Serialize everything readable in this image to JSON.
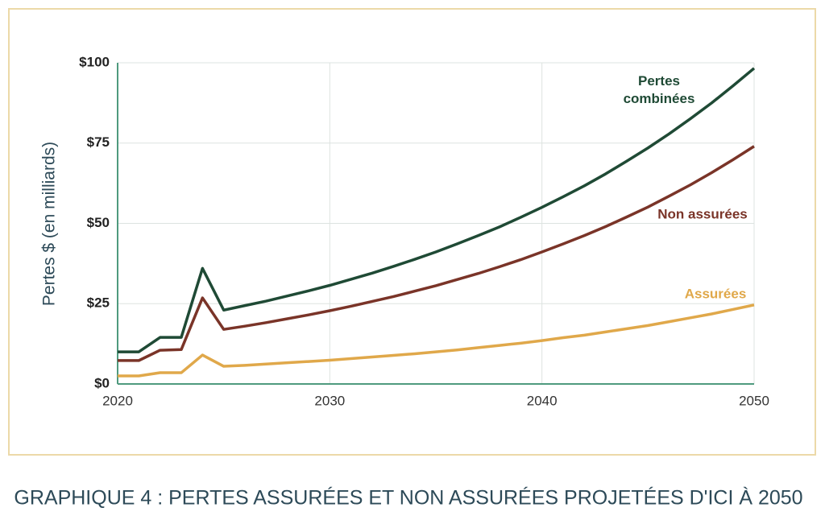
{
  "chart_data": {
    "type": "line",
    "title": "GRAPHIQUE 4 : PERTES ASSURÉES ET NON ASSURÉES PROJETÉES D'ICI À 2050",
    "y_label": "Pertes $ (en milliards)",
    "x": [
      2020,
      2021,
      2022,
      2023,
      2024,
      2025,
      2026,
      2027,
      2028,
      2029,
      2030,
      2031,
      2032,
      2033,
      2034,
      2035,
      2036,
      2037,
      2038,
      2039,
      2040,
      2041,
      2042,
      2043,
      2044,
      2045,
      2046,
      2047,
      2048,
      2049,
      2050
    ],
    "series": [
      {
        "name": "Pertes combinées",
        "color": "#1f4a35",
        "values": [
          10,
          10,
          14.5,
          14.5,
          36,
          23,
          24.4,
          25.8,
          27.4,
          29.0,
          30.7,
          32.6,
          34.5,
          36.6,
          38.8,
          41.1,
          43.6,
          46.2,
          48.9,
          51.9,
          55.0,
          58.3,
          61.7,
          65.4,
          69.4,
          73.5,
          77.9,
          82.6,
          87.5,
          92.8,
          98.3
        ]
      },
      {
        "name": "Non assurées",
        "color": "#7a3428",
        "values": [
          7.3,
          7.3,
          10.5,
          10.7,
          26.8,
          17,
          18.0,
          19.1,
          20.3,
          21.5,
          22.8,
          24.2,
          25.7,
          27.2,
          28.9,
          30.6,
          32.5,
          34.4,
          36.5,
          38.7,
          41.1,
          43.6,
          46.2,
          49.0,
          52.0,
          55.1,
          58.5,
          62.0,
          65.8,
          69.8,
          74.0
        ]
      },
      {
        "name": "Assurées",
        "color": "#e0a84a",
        "values": [
          2.5,
          2.5,
          3.5,
          3.5,
          9,
          5.5,
          5.8,
          6.2,
          6.6,
          7.0,
          7.4,
          7.9,
          8.4,
          8.9,
          9.4,
          10.0,
          10.6,
          11.3,
          12.0,
          12.7,
          13.5,
          14.4,
          15.2,
          16.2,
          17.2,
          18.2,
          19.4,
          20.6,
          21.8,
          23.2,
          24.6
        ]
      }
    ],
    "xlim": [
      2020,
      2050
    ],
    "xticks": [
      2020,
      2030,
      2040,
      2050
    ],
    "ylim": [
      0,
      100
    ],
    "yticks": [
      {
        "value": 0,
        "label": "$0"
      },
      {
        "value": 25,
        "label": "$25"
      },
      {
        "value": 50,
        "label": "$50"
      },
      {
        "value": 75,
        "label": "$75"
      },
      {
        "value": 100,
        "label": "$100"
      }
    ],
    "grid": true
  }
}
